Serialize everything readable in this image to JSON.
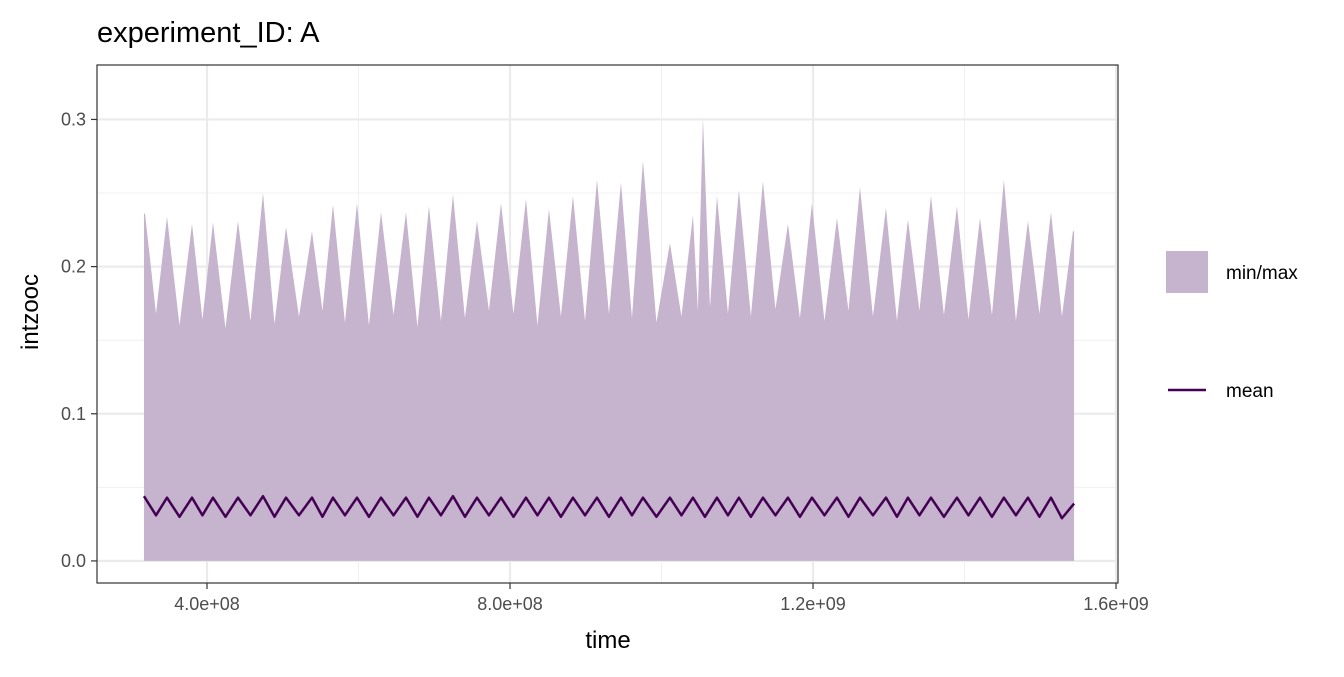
{
  "chart_data": {
    "type": "area",
    "title": "experiment_ID: A",
    "xlabel": "time",
    "ylabel": "intzooc",
    "xlim": [
      254800000.0,
      1602600000.0
    ],
    "ylim": [
      -0.015,
      0.337
    ],
    "x_ticks": [
      400000000.0,
      800000000.0,
      1200000000.0,
      1600000000.0
    ],
    "x_tick_labels": [
      "4.0e+08",
      "8.0e+08",
      "1.2e+09",
      "1.6e+09"
    ],
    "y_ticks": [
      0.0,
      0.1,
      0.2,
      0.3
    ],
    "y_tick_labels": [
      "0.0",
      "0.1",
      "0.2",
      "0.3"
    ],
    "grid": true,
    "legend_position": "right",
    "colors": {
      "ribbon": "#c6b3cd",
      "mean": "#440154"
    },
    "series": [
      {
        "name": "min/max",
        "kind": "ribbon",
        "min": 0.0,
        "t": [
          316800000.0,
          318200000.0,
          332700000.0,
          347200000.0,
          363700000.0,
          380200000.0,
          394000000.0,
          407900000.0,
          424400000.0,
          440900000.0,
          457400000.0,
          473900000.0,
          489100000.0,
          504300000.0,
          521400000.0,
          538600000.0,
          552400000.0,
          566300000.0,
          582100000.0,
          598000000.0,
          613800000.0,
          629700000.0,
          646200000.0,
          662700000.0,
          677800000.0,
          693000000.0,
          708800000.0,
          724700000.0,
          740500000.0,
          756400000.0,
          772200000.0,
          788100000.0,
          804600000.0,
          821100000.0,
          836200000.0,
          851400000.0,
          867200000.0,
          883100000.0,
          899000000.0,
          914800000.0,
          930600000.0,
          946500000.0,
          961000000.0,
          975500000.0,
          993300000.0,
          1011100000.0,
          1026300000.0,
          1041500000.0,
          1048000000.0,
          1054700000.0,
          1064000000.0,
          1073200000.0,
          1087700000.0,
          1102200000.0,
          1118000000.0,
          1133900000.0,
          1150400000.0,
          1166900000.0,
          1182700000.0,
          1198600000.0,
          1215100000.0,
          1231600000.0,
          1246800000.0,
          1262000000.0,
          1279100000.0,
          1296300000.0,
          1310800000.0,
          1325300000.0,
          1340500000.0,
          1355700000.0,
          1372800000.0,
          1390000000.0,
          1405200000.0,
          1420400000.0,
          1436200000.0,
          1452000000.0,
          1467800000.0,
          1483700000.0,
          1498900000.0,
          1514100000.0,
          1528600000.0,
          1543100000.0,
          1544600000.0
        ],
        "max": [
          0.236,
          0.236,
          0.168,
          0.234,
          0.16,
          0.229,
          0.164,
          0.23,
          0.158,
          0.231,
          0.163,
          0.25,
          0.161,
          0.227,
          0.166,
          0.224,
          0.17,
          0.242,
          0.162,
          0.243,
          0.16,
          0.237,
          0.167,
          0.237,
          0.159,
          0.241,
          0.163,
          0.249,
          0.165,
          0.231,
          0.17,
          0.243,
          0.168,
          0.246,
          0.16,
          0.239,
          0.166,
          0.248,
          0.163,
          0.259,
          0.168,
          0.257,
          0.165,
          0.272,
          0.162,
          0.216,
          0.166,
          0.235,
          0.17,
          0.301,
          0.172,
          0.248,
          0.168,
          0.252,
          0.166,
          0.258,
          0.171,
          0.229,
          0.165,
          0.243,
          0.163,
          0.233,
          0.17,
          0.254,
          0.166,
          0.24,
          0.163,
          0.232,
          0.17,
          0.248,
          0.167,
          0.241,
          0.164,
          0.233,
          0.167,
          0.259,
          0.163,
          0.231,
          0.168,
          0.237,
          0.166,
          0.224,
          0.224
        ]
      },
      {
        "name": "mean",
        "kind": "line",
        "t": [
          316800000.0,
          332700000.0,
          347200000.0,
          363700000.0,
          380200000.0,
          394000000.0,
          407900000.0,
          424400000.0,
          440900000.0,
          457400000.0,
          473900000.0,
          489100000.0,
          504300000.0,
          521400000.0,
          538600000.0,
          552400000.0,
          566300000.0,
          582100000.0,
          598000000.0,
          613800000.0,
          629700000.0,
          646200000.0,
          662700000.0,
          677800000.0,
          693000000.0,
          708800000.0,
          724700000.0,
          740500000.0,
          756400000.0,
          772200000.0,
          788100000.0,
          804600000.0,
          821100000.0,
          836200000.0,
          851400000.0,
          867200000.0,
          883100000.0,
          899000000.0,
          914800000.0,
          930600000.0,
          946500000.0,
          961000000.0,
          975500000.0,
          993300000.0,
          1011100000.0,
          1026300000.0,
          1041500000.0,
          1057300000.0,
          1073200000.0,
          1087700000.0,
          1102200000.0,
          1118000000.0,
          1133900000.0,
          1150400000.0,
          1166900000.0,
          1182700000.0,
          1198600000.0,
          1215100000.0,
          1231600000.0,
          1246800000.0,
          1262000000.0,
          1279100000.0,
          1296300000.0,
          1310800000.0,
          1325300000.0,
          1340500000.0,
          1355700000.0,
          1372800000.0,
          1390000000.0,
          1405200000.0,
          1420400000.0,
          1436200000.0,
          1452000000.0,
          1467800000.0,
          1483700000.0,
          1498900000.0,
          1514100000.0,
          1528600000.0,
          1544600000.0
        ],
        "values": [
          0.044,
          0.031,
          0.043,
          0.03,
          0.043,
          0.031,
          0.043,
          0.03,
          0.043,
          0.031,
          0.044,
          0.03,
          0.043,
          0.031,
          0.043,
          0.03,
          0.043,
          0.031,
          0.043,
          0.03,
          0.043,
          0.031,
          0.043,
          0.03,
          0.043,
          0.031,
          0.044,
          0.03,
          0.043,
          0.031,
          0.043,
          0.03,
          0.043,
          0.031,
          0.043,
          0.03,
          0.043,
          0.031,
          0.043,
          0.03,
          0.043,
          0.031,
          0.043,
          0.03,
          0.043,
          0.031,
          0.043,
          0.03,
          0.043,
          0.031,
          0.043,
          0.03,
          0.043,
          0.031,
          0.043,
          0.03,
          0.043,
          0.031,
          0.043,
          0.03,
          0.043,
          0.031,
          0.043,
          0.03,
          0.043,
          0.031,
          0.043,
          0.03,
          0.043,
          0.031,
          0.043,
          0.03,
          0.043,
          0.031,
          0.043,
          0.03,
          0.043,
          0.029,
          0.039
        ]
      }
    ]
  }
}
